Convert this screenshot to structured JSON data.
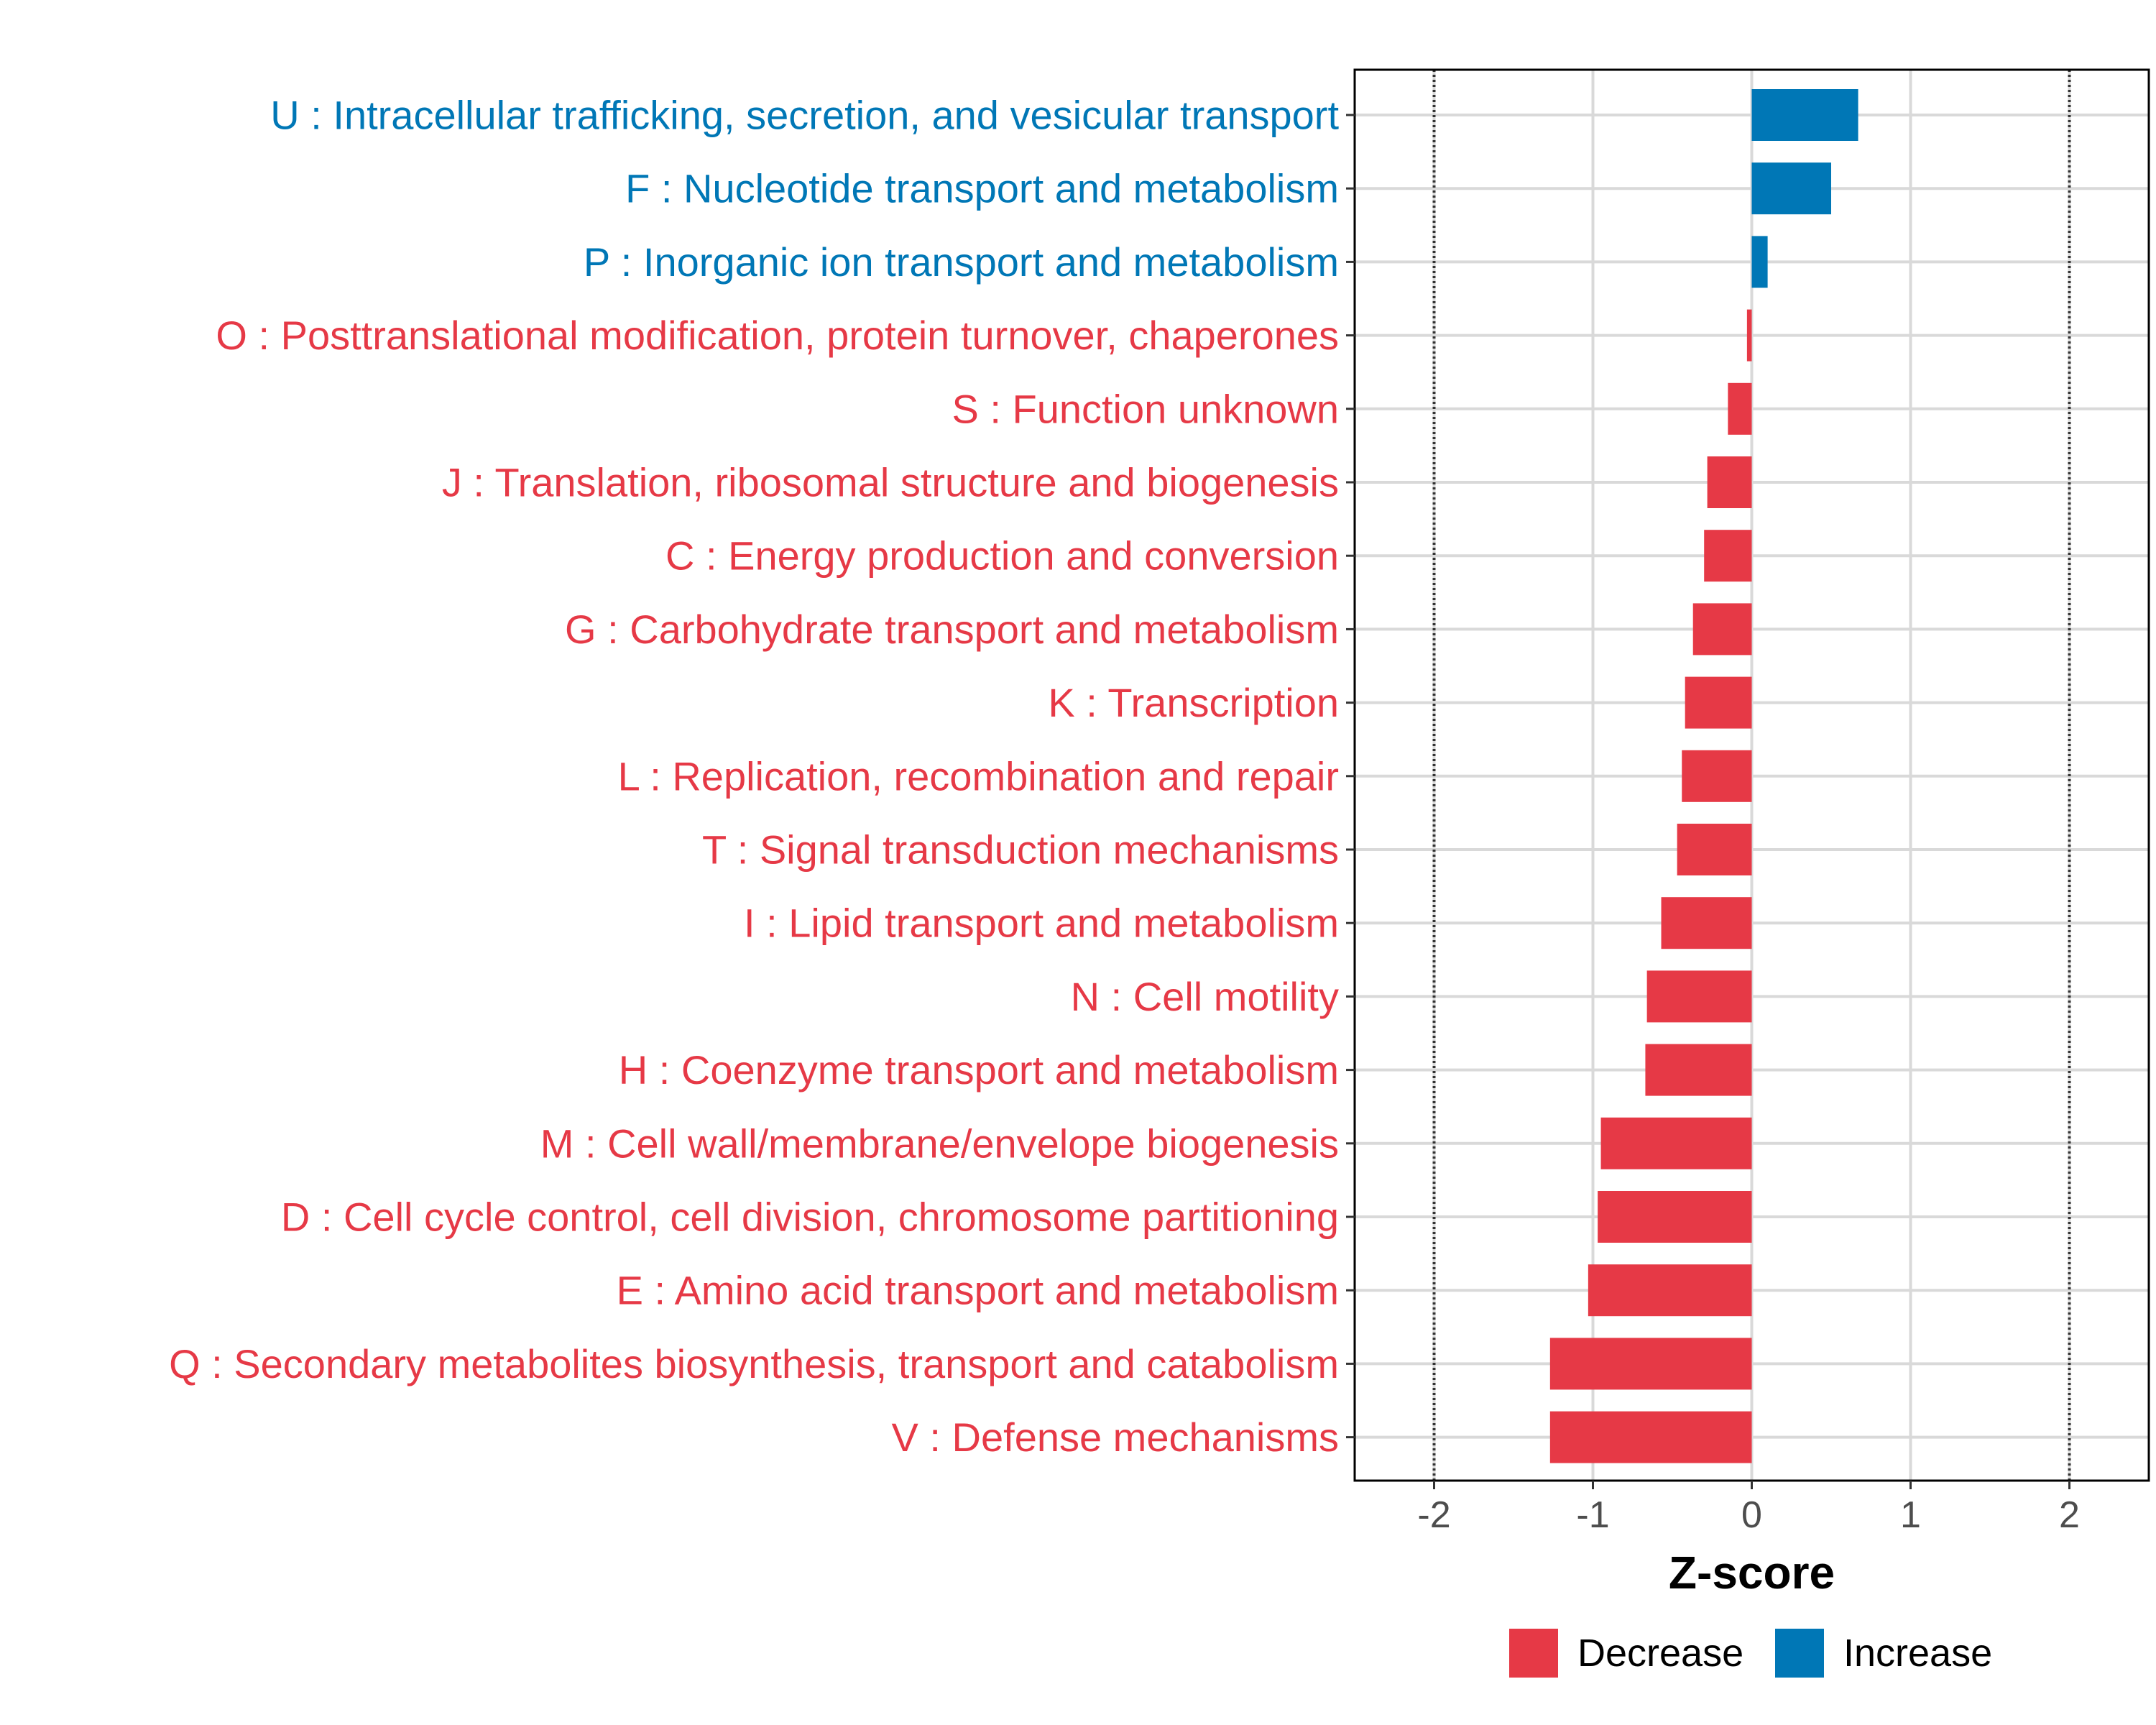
{
  "chart_data": {
    "type": "bar",
    "orientation": "horizontal",
    "xlabel": "Z-score",
    "xlim": [
      -2.5,
      2.5
    ],
    "x_ticks": [
      -2,
      -1,
      0,
      1,
      2
    ],
    "x_tick_labels": [
      "-2",
      "-1",
      "0",
      "1",
      "2"
    ],
    "reference_lines": [
      -2,
      2
    ],
    "grid": true,
    "legend_position": "bottom-right",
    "colors": {
      "Decrease": "#e63946",
      "Increase": "#0077b6"
    },
    "legend": [
      {
        "label": "Decrease",
        "color": "#e63946"
      },
      {
        "label": "Increase",
        "color": "#0077b6"
      }
    ],
    "bars": [
      {
        "label": "U : Intracellular trafficking, secretion, and vesicular transport",
        "value": 0.67,
        "group": "Increase"
      },
      {
        "label": "F : Nucleotide transport and metabolism",
        "value": 0.5,
        "group": "Increase"
      },
      {
        "label": "P : Inorganic ion transport and metabolism",
        "value": 0.1,
        "group": "Increase"
      },
      {
        "label": "O : Posttranslational modification, protein turnover, chaperones",
        "value": -0.03,
        "group": "Decrease"
      },
      {
        "label": "S : Function unknown",
        "value": -0.15,
        "group": "Decrease"
      },
      {
        "label": "J : Translation, ribosomal structure and biogenesis",
        "value": -0.28,
        "group": "Decrease"
      },
      {
        "label": "C : Energy production and conversion",
        "value": -0.3,
        "group": "Decrease"
      },
      {
        "label": "G : Carbohydrate transport and metabolism",
        "value": -0.37,
        "group": "Decrease"
      },
      {
        "label": "K : Transcription",
        "value": -0.42,
        "group": "Decrease"
      },
      {
        "label": "L : Replication, recombination and repair",
        "value": -0.44,
        "group": "Decrease"
      },
      {
        "label": "T : Signal transduction mechanisms",
        "value": -0.47,
        "group": "Decrease"
      },
      {
        "label": "I : Lipid transport and metabolism",
        "value": -0.57,
        "group": "Decrease"
      },
      {
        "label": "N : Cell motility",
        "value": -0.66,
        "group": "Decrease"
      },
      {
        "label": "H : Coenzyme transport and metabolism",
        "value": -0.67,
        "group": "Decrease"
      },
      {
        "label": "M : Cell wall/membrane/envelope biogenesis",
        "value": -0.95,
        "group": "Decrease"
      },
      {
        "label": "D : Cell cycle control, cell division, chromosome partitioning",
        "value": -0.97,
        "group": "Decrease"
      },
      {
        "label": "E : Amino acid transport and metabolism",
        "value": -1.03,
        "group": "Decrease"
      },
      {
        "label": "Q : Secondary metabolites biosynthesis, transport and catabolism",
        "value": -1.27,
        "group": "Decrease"
      },
      {
        "label": "V : Defense mechanisms",
        "value": -1.27,
        "group": "Decrease"
      }
    ]
  }
}
